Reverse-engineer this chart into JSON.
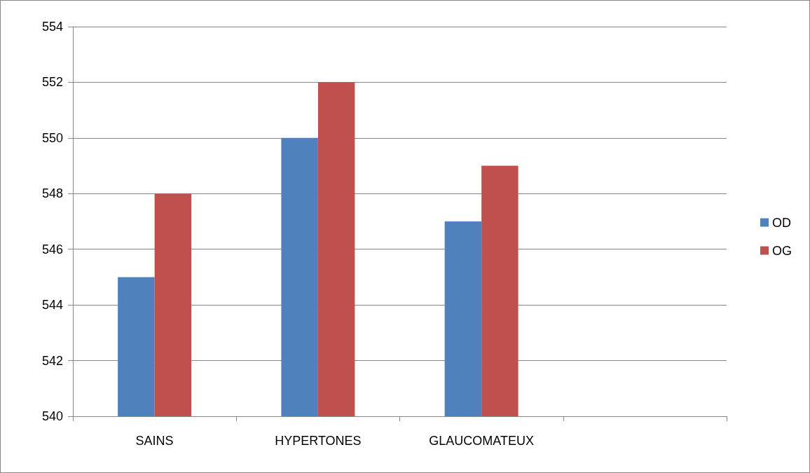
{
  "chart_data": {
    "type": "bar",
    "categories": [
      "SAINS",
      "HYPERTONES",
      "GLAUCOMATEUX",
      null
    ],
    "series": [
      {
        "name": "OD",
        "color": "#4f81bd",
        "values": [
          545,
          550,
          547,
          null
        ]
      },
      {
        "name": "OG",
        "color": "#c0504d",
        "values": [
          548,
          552,
          549,
          null
        ]
      }
    ],
    "ylim": [
      540,
      554
    ],
    "yticks": [
      540,
      542,
      544,
      546,
      548,
      550,
      552,
      554
    ],
    "grid": "y",
    "legend": "right"
  }
}
